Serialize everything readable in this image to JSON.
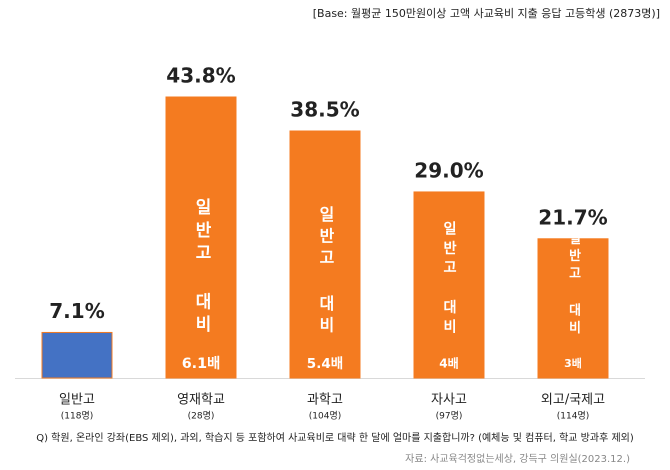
{
  "chart_data": {
    "type": "bar",
    "base_note": "[Base: 월평균 150만원이상 고액 사교육비 지출 응답 고등학생 (2873명)]",
    "categories": [
      "일반고",
      "영재학교",
      "과학고",
      "자사고",
      "외고/국제고"
    ],
    "counts": [
      "(118명)",
      "(28명)",
      "(104명)",
      "(97명)",
      "(114명)"
    ],
    "values": [
      7.1,
      43.8,
      38.5,
      29.0,
      21.7
    ],
    "value_labels": [
      "7.1%",
      "43.8%",
      "38.5%",
      "29.0%",
      "21.7%"
    ],
    "colors": [
      "#4472c4",
      "#f47b20",
      "#f47b20",
      "#f47b20",
      "#f47b20"
    ],
    "bar_notes": [
      null,
      {
        "text": "일반고 대비",
        "ratio": "6.1배"
      },
      {
        "text": "일반고 대비",
        "ratio": "5.4배"
      },
      {
        "text": "일반고 대비",
        "ratio": "4배"
      },
      {
        "text": "일반고 대비",
        "ratio": "3배"
      }
    ],
    "question": "Q) 학원, 온라인 강좌(EBS 제외), 과외, 학습지 등 포함하여 사교육비로 대략 한 달에 얼마를 지출합니까? (예체능 및 컴퓨터, 학교 방과후 제외)",
    "source": "자료: 사교육걱정없는세상, 강득구 의원실(2023.12.)"
  }
}
